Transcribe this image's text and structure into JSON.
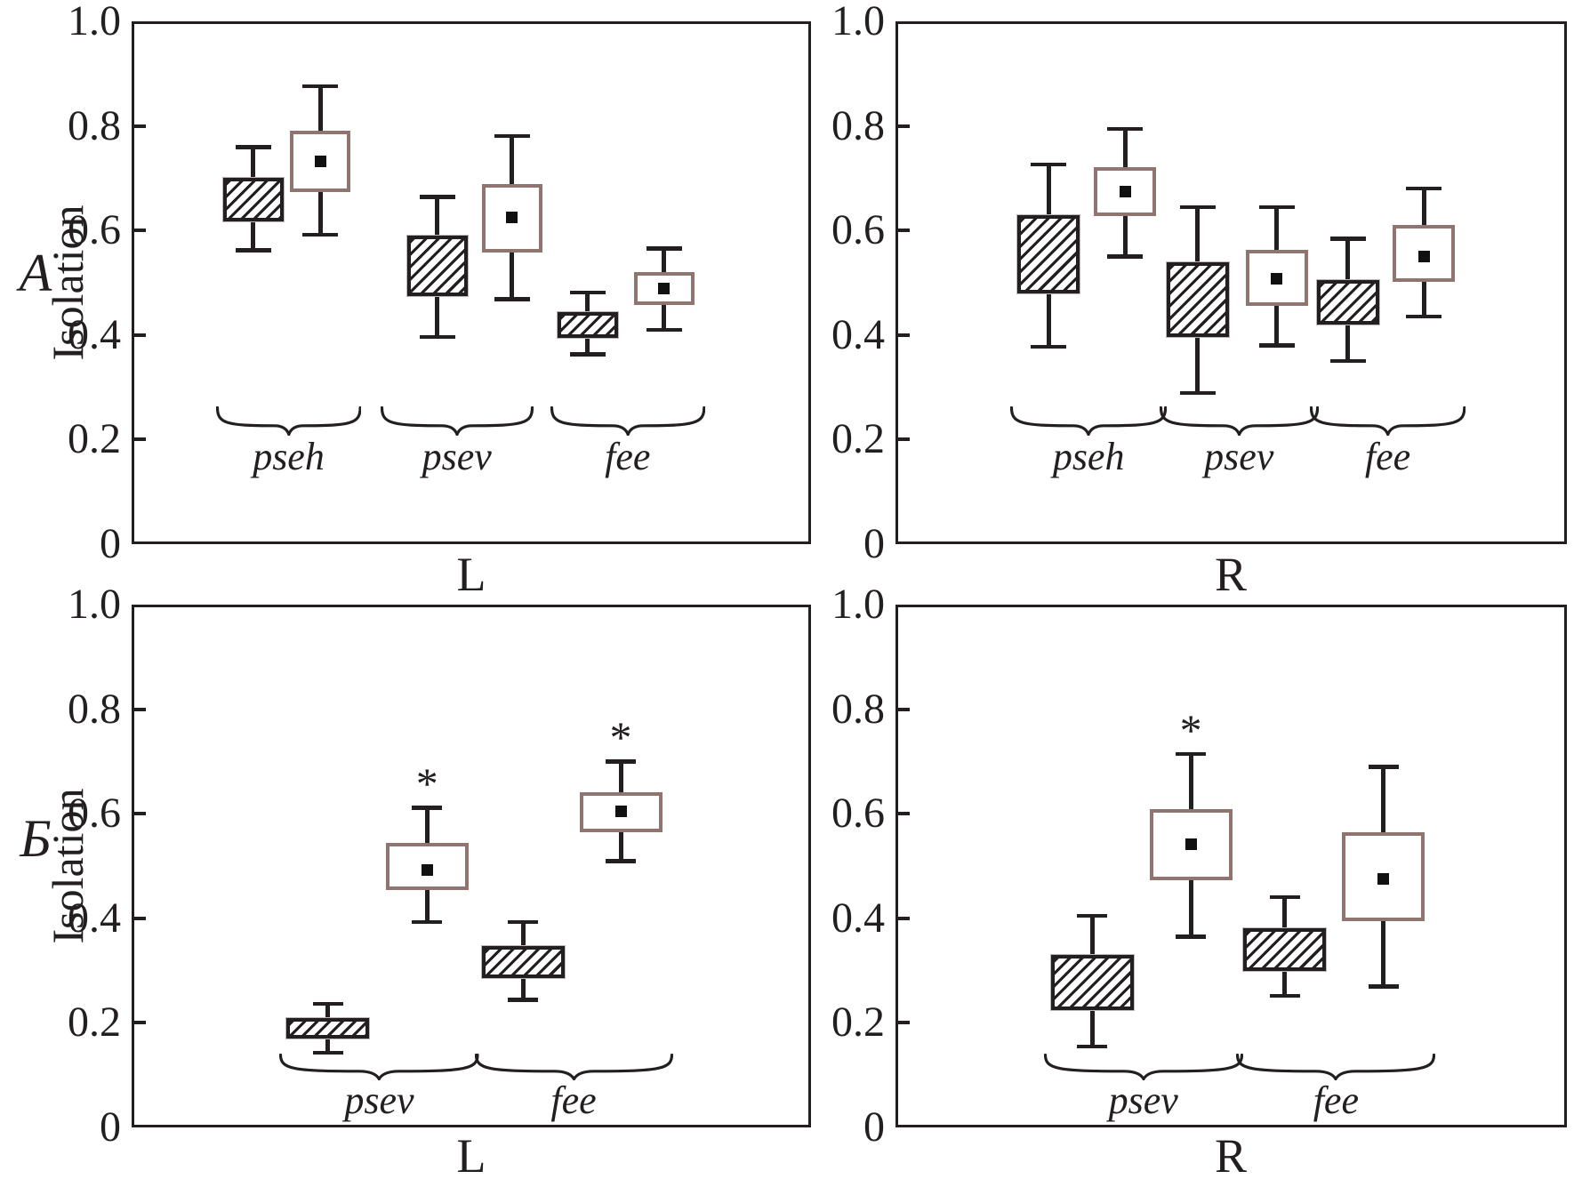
{
  "colors": {
    "ink": "#231f20",
    "open_box_border": "#8f7470",
    "background": "#ffffff"
  },
  "annotations": {
    "significance_marker": "*"
  },
  "chart_data": [
    {
      "id": "top-left",
      "type": "box",
      "row_label": "A",
      "xlabel": "L",
      "ylabel": "Isolation",
      "ylim": [
        0,
        1.0
      ],
      "yticks": [
        "0",
        "0.2",
        "0.4",
        "0.6",
        "0.8",
        "1.0"
      ],
      "box_styles": {
        "hatched": "black diagonal-hatch box",
        "open": "white box, brown border, black square = mean"
      },
      "groups": [
        {
          "label": "pseh",
          "hatched": {
            "low": 0.568,
            "q1": 0.622,
            "q3": 0.706,
            "high": 0.765
          },
          "open": {
            "low": 0.597,
            "q1": 0.679,
            "mean": 0.738,
            "q3": 0.796,
            "high": 0.881
          }
        },
        {
          "label": "psev",
          "hatched": {
            "low": 0.402,
            "q1": 0.48,
            "q3": 0.595,
            "high": 0.67
          },
          "open": {
            "low": 0.474,
            "q1": 0.563,
            "mean": 0.63,
            "q3": 0.694,
            "high": 0.786
          }
        },
        {
          "label": "fee",
          "hatched": {
            "low": 0.369,
            "q1": 0.4,
            "q3": 0.449,
            "high": 0.487
          },
          "open": {
            "low": 0.415,
            "q1": 0.462,
            "mean": 0.494,
            "q3": 0.525,
            "high": 0.571
          }
        }
      ]
    },
    {
      "id": "top-right",
      "type": "box",
      "xlabel": "R",
      "ylim": [
        0,
        1.0
      ],
      "yticks": [
        "0",
        "0.2",
        "0.4",
        "0.6",
        "0.8",
        "1.0"
      ],
      "groups": [
        {
          "label": "pseh",
          "hatched": {
            "low": 0.383,
            "q1": 0.485,
            "q3": 0.634,
            "high": 0.732
          },
          "open": {
            "low": 0.556,
            "q1": 0.633,
            "mean": 0.679,
            "q3": 0.726,
            "high": 0.8
          }
        },
        {
          "label": "psev",
          "hatched": {
            "low": 0.295,
            "q1": 0.401,
            "q3": 0.545,
            "high": 0.65
          },
          "open": {
            "low": 0.386,
            "q1": 0.461,
            "mean": 0.512,
            "q3": 0.568,
            "high": 0.65
          }
        },
        {
          "label": "fee",
          "hatched": {
            "low": 0.356,
            "q1": 0.426,
            "q3": 0.51,
            "high": 0.59
          },
          "open": {
            "low": 0.441,
            "q1": 0.506,
            "mean": 0.556,
            "q3": 0.616,
            "high": 0.686
          }
        }
      ]
    },
    {
      "id": "bottom-left",
      "type": "box",
      "row_label": "Б",
      "xlabel": "L",
      "ylabel": "Isolation",
      "ylim": [
        0,
        1.0
      ],
      "yticks": [
        "0",
        "0.2",
        "0.4",
        "0.6",
        "0.8",
        "1.0"
      ],
      "groups": [
        {
          "label": "psev",
          "hatched": {
            "low": 0.148,
            "q1": 0.175,
            "q3": 0.214,
            "high": 0.242
          },
          "open": {
            "low": 0.398,
            "q1": 0.459,
            "mean": 0.498,
            "q3": 0.549,
            "high": 0.617,
            "star": "*"
          }
        },
        {
          "label": "fee",
          "hatched": {
            "low": 0.25,
            "q1": 0.291,
            "q3": 0.352,
            "high": 0.398
          },
          "open": {
            "low": 0.515,
            "q1": 0.57,
            "mean": 0.61,
            "q3": 0.646,
            "high": 0.705,
            "star": "*"
          }
        }
      ]
    },
    {
      "id": "bottom-right",
      "type": "box",
      "xlabel": "R",
      "ylim": [
        0,
        1.0
      ],
      "yticks": [
        "0",
        "0.2",
        "0.4",
        "0.6",
        "0.8",
        "1.0"
      ],
      "groups": [
        {
          "label": "psev",
          "hatched": {
            "low": 0.16,
            "q1": 0.23,
            "q3": 0.335,
            "high": 0.41
          },
          "open": {
            "low": 0.37,
            "q1": 0.478,
            "mean": 0.546,
            "q3": 0.614,
            "high": 0.72,
            "star": "*"
          }
        },
        {
          "label": "fee",
          "hatched": {
            "low": 0.257,
            "q1": 0.304,
            "q3": 0.386,
            "high": 0.446
          },
          "open": {
            "low": 0.275,
            "q1": 0.4,
            "mean": 0.48,
            "q3": 0.57,
            "high": 0.695
          }
        }
      ]
    }
  ]
}
